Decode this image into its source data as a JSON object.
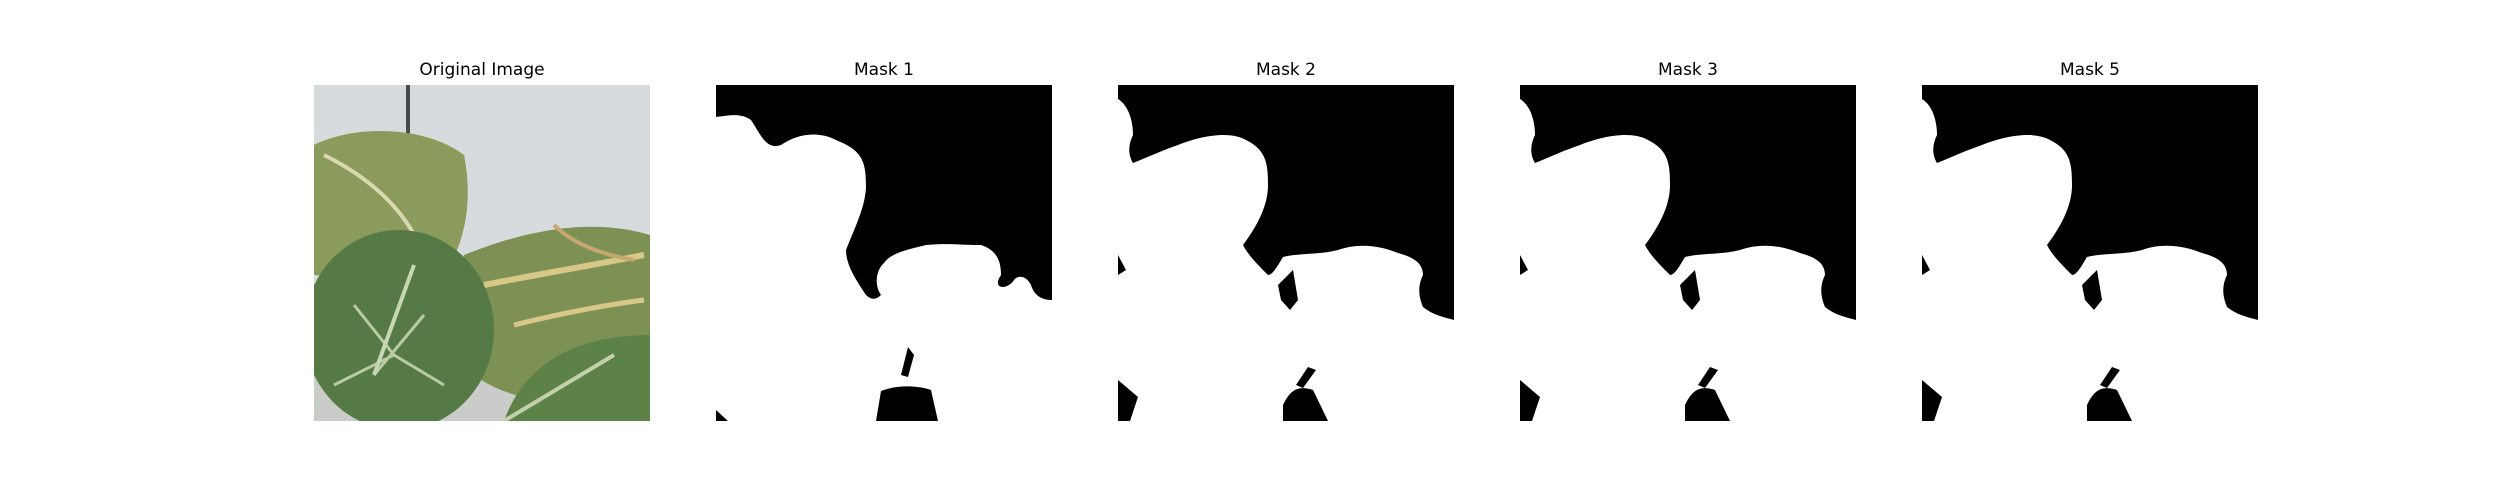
{
  "figure": {
    "panels": [
      {
        "title": "Original Image",
        "kind": "photo"
      },
      {
        "title": "Mask 1",
        "kind": "mask"
      },
      {
        "title": "Mask 2",
        "kind": "mask"
      },
      {
        "title": "Mask 3",
        "kind": "mask"
      },
      {
        "title": "Mask 5",
        "kind": "mask"
      }
    ],
    "colors": {
      "mask_foreground": "#ffffff",
      "mask_background": "#000000",
      "wall": "#d6dadd",
      "leaf_dark": "#4d7340",
      "leaf_light": "#9aa66a"
    }
  }
}
